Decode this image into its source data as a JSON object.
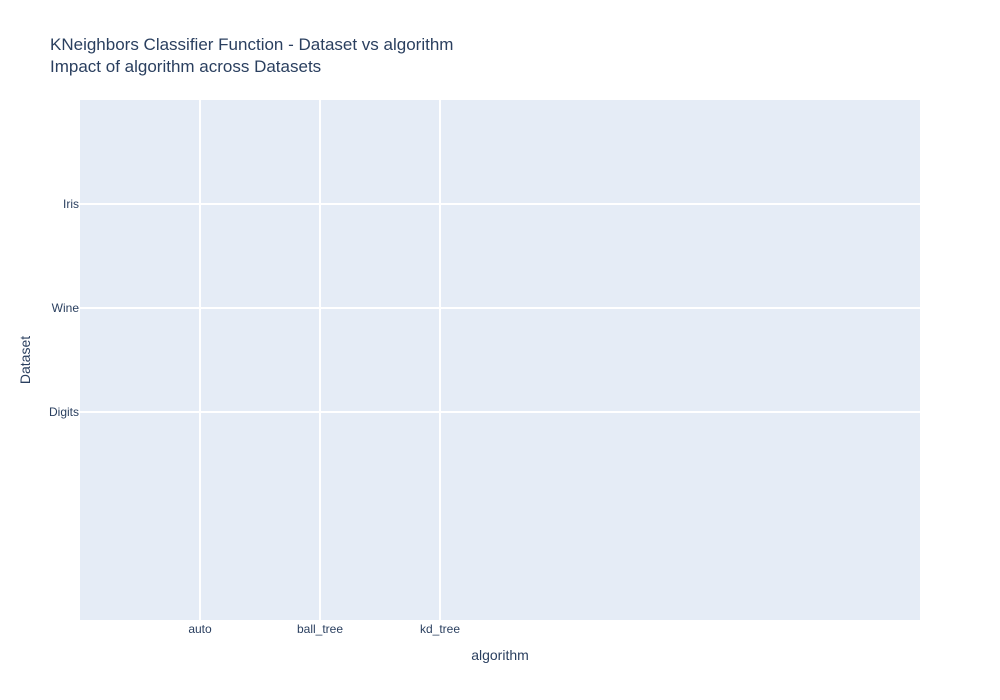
{
  "chart_data": {
    "type": "scatter",
    "title": "KNeighbors Classifier Function - Dataset vs algorithm",
    "subtitle": "Impact of algorithm across Datasets",
    "xlabel": "algorithm",
    "ylabel": "Dataset",
    "x_categories": [
      "auto",
      "ball_tree",
      "kd_tree"
    ],
    "y_categories": [
      "Iris",
      "Wine",
      "Digits"
    ],
    "series": [],
    "grid": true,
    "colors": {
      "plot_background": "#e5ecf6",
      "grid": "#ffffff",
      "text": "#2a3f5f"
    }
  }
}
